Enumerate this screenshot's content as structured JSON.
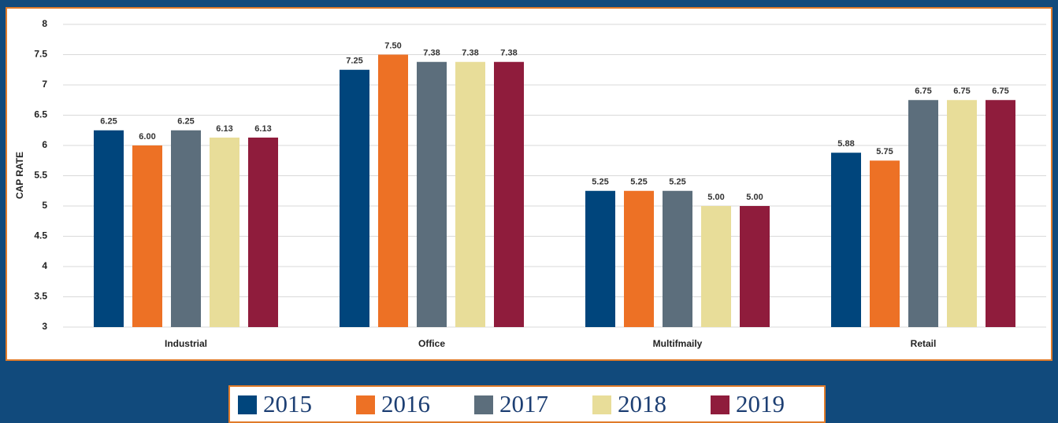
{
  "chart_data": {
    "type": "bar",
    "y_label": "CAP RATE",
    "categories": [
      "Industrial",
      "Office",
      "Multifmaily",
      "Retail"
    ],
    "series": [
      {
        "name": "2015",
        "color": "#00457c",
        "values": [
          6.25,
          7.25,
          5.25,
          5.88
        ],
        "value_labels": [
          "6.25",
          "7.25",
          "5.25",
          "5.88"
        ]
      },
      {
        "name": "2016",
        "color": "#ed7125",
        "values": [
          6.0,
          7.5,
          5.25,
          5.75
        ],
        "value_labels": [
          "6.00",
          "7.50",
          "5.25",
          "5.75"
        ]
      },
      {
        "name": "2017",
        "color": "#5c6e7c",
        "values": [
          6.25,
          7.38,
          5.25,
          6.75
        ],
        "value_labels": [
          "6.25",
          "7.38",
          "5.25",
          "6.75"
        ]
      },
      {
        "name": "2018",
        "color": "#e8dd99",
        "values": [
          6.13,
          7.38,
          5.0,
          6.75
        ],
        "value_labels": [
          "6.13",
          "7.38",
          "5.00",
          "6.75"
        ]
      },
      {
        "name": "2019",
        "color": "#8f1c3c",
        "values": [
          6.13,
          7.38,
          5.0,
          6.75
        ],
        "value_labels": [
          "6.13",
          "7.38",
          "5.00",
          "6.75"
        ]
      }
    ],
    "ylim": [
      3,
      8
    ],
    "yticks": [
      3,
      3.5,
      4,
      4.5,
      5,
      5.5,
      6,
      6.5,
      7,
      7.5,
      8
    ],
    "grid": true,
    "legend": "bottom"
  }
}
